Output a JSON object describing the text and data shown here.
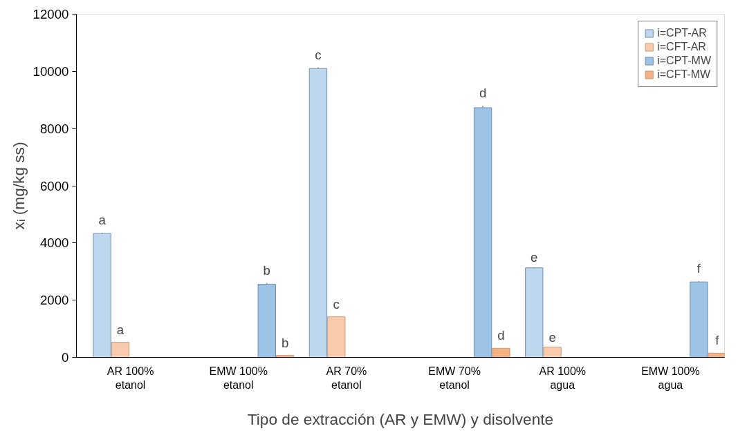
{
  "chart_data": {
    "type": "bar",
    "xlabel": "Tipo de extracción (AR y EMW) y disolvente",
    "ylabel": "xᵢ (mg/kg ss)",
    "categories": [
      "AR 100%\netanol",
      "EMW 100%\netanol",
      "AR 70%\netanol",
      "EMW 70%\netanol",
      "AR 100%\nagua",
      "EMW 100%\nagua"
    ],
    "series": [
      {
        "name": "i=CPT-AR",
        "color": "#bdd7ee",
        "values": [
          4330,
          null,
          10100,
          null,
          3130,
          null
        ],
        "errors": [
          20,
          null,
          40,
          null,
          20,
          null
        ],
        "value_labels": [
          "a",
          null,
          "c",
          null,
          "e",
          null
        ]
      },
      {
        "name": "i=CFT-AR",
        "color": "#f8cbad",
        "values": [
          530,
          null,
          1420,
          null,
          360,
          null
        ],
        "value_labels": [
          "a",
          null,
          "c",
          null,
          "e",
          null
        ]
      },
      {
        "name": "i=CPT-MW",
        "color": "#9dc3e6",
        "values": [
          null,
          2560,
          null,
          8730,
          null,
          2640
        ],
        "errors": [
          null,
          40,
          null,
          70,
          null,
          20
        ],
        "value_labels": [
          null,
          "b",
          null,
          "d",
          null,
          "f"
        ]
      },
      {
        "name": "i=CFT-MW",
        "color": "#f4b183",
        "values": [
          null,
          70,
          null,
          320,
          null,
          150
        ],
        "value_labels": [
          null,
          "b",
          null,
          "d",
          null,
          "f"
        ]
      }
    ],
    "ylim": [
      0,
      12000
    ],
    "yticks": [
      0,
      2000,
      4000,
      6000,
      8000,
      10000,
      12000
    ],
    "grid": false,
    "legend": "top right"
  }
}
